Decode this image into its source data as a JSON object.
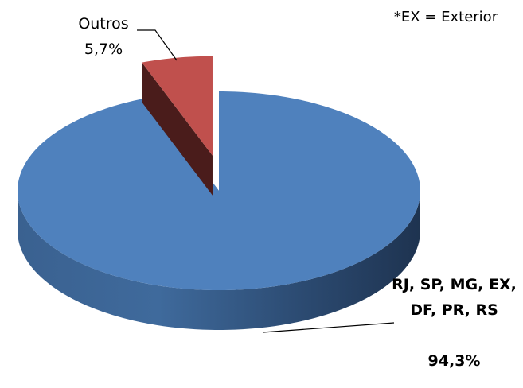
{
  "chart_data": {
    "type": "pie",
    "categories": [
      "RJ, SP, MG, EX, DF, PR, RS",
      "Outros"
    ],
    "values": [
      94.3,
      5.7
    ],
    "value_labels": [
      "94,3%",
      "5,7%"
    ],
    "colors": [
      "#4f81bd",
      "#c0504d"
    ],
    "annotation": "*EX = Exterior"
  }
}
